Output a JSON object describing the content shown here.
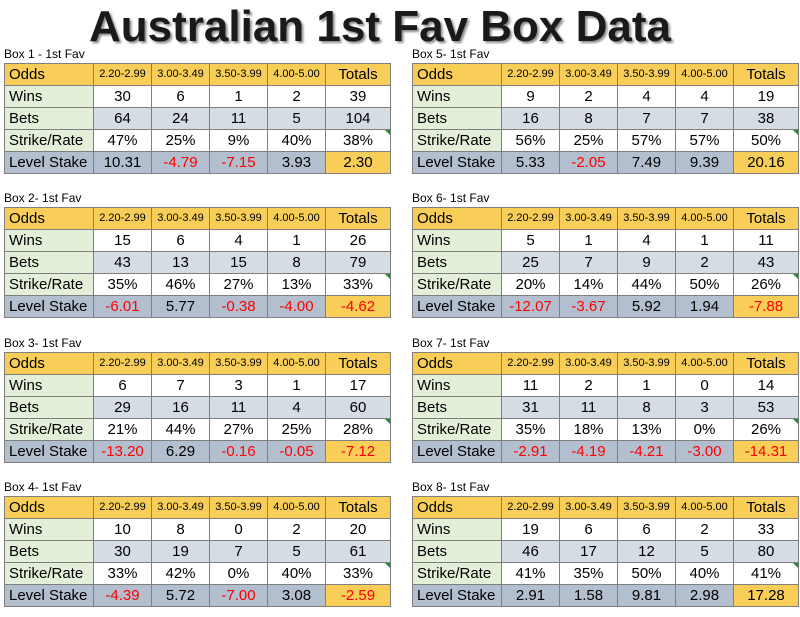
{
  "title": "Australian 1st Fav Box Data",
  "header": {
    "odds": "Odds",
    "ranges": [
      "2.20-2.99",
      "3.00-3.49",
      "3.50-3.99",
      "4.00-5.00"
    ],
    "totals": "Totals"
  },
  "row_labels": {
    "wins": "Wins",
    "bets": "Bets",
    "strike": "Strike/Rate",
    "level": "Level Stake"
  },
  "colors": {
    "header": "#f8ce58",
    "label_bg": "#e3efd9",
    "gray_row": "#d5dce4",
    "stake_row": "#b3bfcf",
    "negative": "#ff0000"
  },
  "boxes": [
    {
      "caption": "Box 1 - 1st Fav",
      "wins": [
        "30",
        "6",
        "1",
        "2",
        "39"
      ],
      "bets": [
        "64",
        "24",
        "11",
        "5",
        "104"
      ],
      "strike": [
        "47%",
        "25%",
        "9%",
        "40%",
        "38%"
      ],
      "level": [
        "10.31",
        "-4.79",
        "-7.15",
        "3.93",
        "2.30"
      ]
    },
    {
      "caption": "Box 2- 1st Fav",
      "wins": [
        "15",
        "6",
        "4",
        "1",
        "26"
      ],
      "bets": [
        "43",
        "13",
        "15",
        "8",
        "79"
      ],
      "strike": [
        "35%",
        "46%",
        "27%",
        "13%",
        "33%"
      ],
      "level": [
        "-6.01",
        "5.77",
        "-0.38",
        "-4.00",
        "-4.62"
      ]
    },
    {
      "caption": "Box 3- 1st Fav",
      "wins": [
        "6",
        "7",
        "3",
        "1",
        "17"
      ],
      "bets": [
        "29",
        "16",
        "11",
        "4",
        "60"
      ],
      "strike": [
        "21%",
        "44%",
        "27%",
        "25%",
        "28%"
      ],
      "level": [
        "-13.20",
        "6.29",
        "-0.16",
        "-0.05",
        "-7.12"
      ]
    },
    {
      "caption": "Box 4- 1st Fav",
      "wins": [
        "10",
        "8",
        "0",
        "2",
        "20"
      ],
      "bets": [
        "30",
        "19",
        "7",
        "5",
        "61"
      ],
      "strike": [
        "33%",
        "42%",
        "0%",
        "40%",
        "33%"
      ],
      "level": [
        "-4.39",
        "5.72",
        "-7.00",
        "3.08",
        "-2.59"
      ]
    },
    {
      "caption": "Box 5- 1st Fav",
      "wins": [
        "9",
        "2",
        "4",
        "4",
        "19"
      ],
      "bets": [
        "16",
        "8",
        "7",
        "7",
        "38"
      ],
      "strike": [
        "56%",
        "25%",
        "57%",
        "57%",
        "50%"
      ],
      "level": [
        "5.33",
        "-2.05",
        "7.49",
        "9.39",
        "20.16"
      ]
    },
    {
      "caption": "Box 6- 1st Fav",
      "wins": [
        "5",
        "1",
        "4",
        "1",
        "11"
      ],
      "bets": [
        "25",
        "7",
        "9",
        "2",
        "43"
      ],
      "strike": [
        "20%",
        "14%",
        "44%",
        "50%",
        "26%"
      ],
      "level": [
        "-12.07",
        "-3.67",
        "5.92",
        "1.94",
        "-7.88"
      ]
    },
    {
      "caption": "Box 7- 1st Fav",
      "wins": [
        "11",
        "2",
        "1",
        "0",
        "14"
      ],
      "bets": [
        "31",
        "11",
        "8",
        "3",
        "53"
      ],
      "strike": [
        "35%",
        "18%",
        "13%",
        "0%",
        "26%"
      ],
      "level": [
        "-2.91",
        "-4.19",
        "-4.21",
        "-3.00",
        "-14.31"
      ]
    },
    {
      "caption": "Box 8- 1st Fav",
      "wins": [
        "19",
        "6",
        "6",
        "2",
        "33"
      ],
      "bets": [
        "46",
        "17",
        "12",
        "5",
        "80"
      ],
      "strike": [
        "41%",
        "35%",
        "50%",
        "40%",
        "41%"
      ],
      "level": [
        "2.91",
        "1.58",
        "9.81",
        "2.98",
        "17.28"
      ]
    }
  ]
}
